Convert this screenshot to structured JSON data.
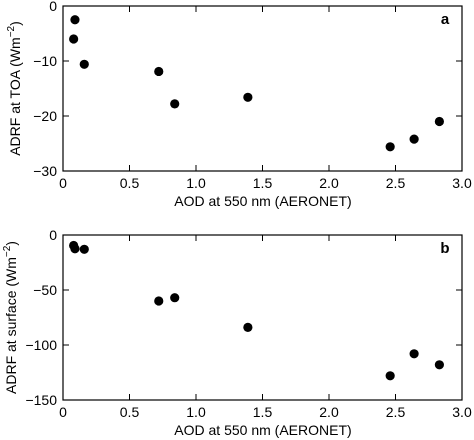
{
  "chart_data": [
    {
      "type": "scatter",
      "panel_label": "a",
      "xlabel": "AOD at 550 nm (AERONET)",
      "ylabel": "ADRF at TOA (Wm",
      "ylabel_sup": "−2",
      "ylabel_end": ")",
      "xlim": [
        0,
        3.0
      ],
      "ylim": [
        -30,
        0
      ],
      "xticks": [
        0,
        0.5,
        1.0,
        1.5,
        2.0,
        2.5,
        3.0
      ],
      "xtick_labels": [
        "0",
        "0.5",
        "1.0",
        "1.5",
        "2.0",
        "2.5",
        "3.0"
      ],
      "yticks": [
        0,
        -10,
        -20,
        -30
      ],
      "ytick_labels": [
        "0",
        "−10",
        "−20",
        "−30"
      ],
      "series": [
        {
          "x": [
            0.09,
            0.08,
            0.16,
            0.72,
            0.84,
            1.39,
            2.46,
            2.64,
            2.83
          ],
          "y": [
            -2.5,
            -6.0,
            -10.6,
            -11.9,
            -17.8,
            -16.6,
            -25.6,
            -24.2,
            -21.0
          ]
        }
      ]
    },
    {
      "type": "scatter",
      "panel_label": "b",
      "xlabel": "AOD at 550 nm (AERONET)",
      "ylabel": "ADRF at surface (Wm",
      "ylabel_sup": "−2",
      "ylabel_end": ")",
      "xlim": [
        0,
        3.0
      ],
      "ylim": [
        -150,
        0
      ],
      "xticks": [
        0,
        0.5,
        1.0,
        1.5,
        2.0,
        2.5,
        3.0
      ],
      "xtick_labels": [
        "0",
        "0.5",
        "1.0",
        "1.5",
        "2.0",
        "2.5",
        "3.0"
      ],
      "yticks": [
        0,
        -50,
        -100,
        -150
      ],
      "ytick_labels": [
        "0",
        "−50",
        "−100",
        "−150"
      ],
      "series": [
        {
          "x": [
            0.08,
            0.09,
            0.16,
            0.72,
            0.84,
            1.39,
            2.46,
            2.64,
            2.83
          ],
          "y": [
            -9.5,
            -12.5,
            -13.0,
            -60.0,
            -57.0,
            -84.0,
            -128.0,
            -108.0,
            -118.0
          ]
        }
      ]
    }
  ]
}
